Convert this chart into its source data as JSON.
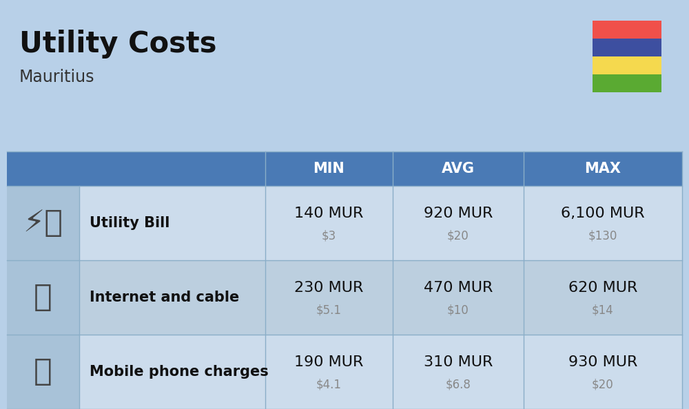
{
  "title": "Utility Costs",
  "subtitle": "Mauritius",
  "background_color": "#b8d0e8",
  "header_bg_color": "#4a7ab5",
  "header_text_color": "#ffffff",
  "row_bg_colors": [
    "#ccdcec",
    "#bccfdf"
  ],
  "icon_col_color": "#a8c2d8",
  "col_headers": [
    "MIN",
    "AVG",
    "MAX"
  ],
  "rows": [
    {
      "label": "Utility Bill",
      "min_mur": "140 MUR",
      "min_usd": "$3",
      "avg_mur": "920 MUR",
      "avg_usd": "$20",
      "max_mur": "6,100 MUR",
      "max_usd": "$130"
    },
    {
      "label": "Internet and cable",
      "min_mur": "230 MUR",
      "min_usd": "$5.1",
      "avg_mur": "470 MUR",
      "avg_usd": "$10",
      "max_mur": "620 MUR",
      "max_usd": "$14"
    },
    {
      "label": "Mobile phone charges",
      "min_mur": "190 MUR",
      "min_usd": "$4.1",
      "avg_mur": "310 MUR",
      "avg_usd": "$6.8",
      "max_mur": "930 MUR",
      "max_usd": "$20"
    }
  ],
  "flag_colors": [
    "#f0504a",
    "#3d4fa0",
    "#f5d94e",
    "#5aaa32"
  ],
  "mur_fontsize": 16,
  "usd_fontsize": 12,
  "label_fontsize": 15,
  "header_fontsize": 15,
  "title_fontsize": 30,
  "subtitle_fontsize": 17
}
